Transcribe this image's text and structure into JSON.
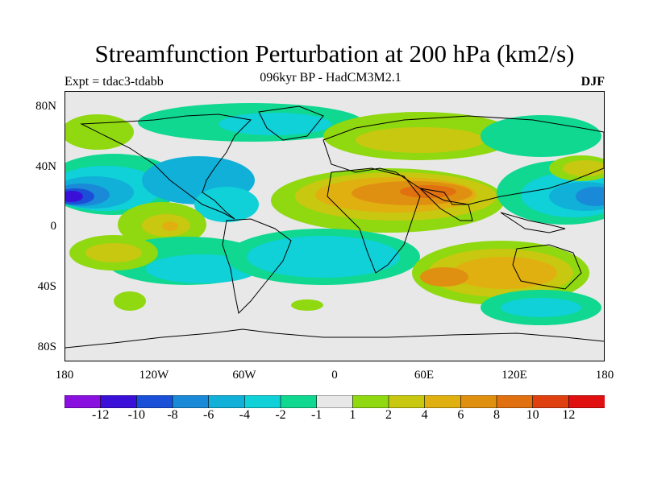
{
  "title": "Streamfunction Perturbation at 200 hPa (km2/s)",
  "subtitle": "096kyr BP - HadCM3M2.1",
  "experiment": "Expt = tdac3-tdabb",
  "season": "DJF",
  "latitude_labels": [
    "80N",
    "40N",
    "0",
    "40S",
    "80S"
  ],
  "longitude_labels": [
    "180",
    "120W",
    "60W",
    "0",
    "60E",
    "120E",
    "180"
  ],
  "colorbar": {
    "labels": [
      "-12",
      "-10",
      "-8",
      "-6",
      "-4",
      "-2",
      "-1",
      "1",
      "2",
      "4",
      "6",
      "8",
      "10",
      "12"
    ],
    "colors": [
      "#8a10e0",
      "#3a10d8",
      "#1a50d8",
      "#1a8ad8",
      "#10b0d8",
      "#10d0d8",
      "#10d890",
      "#e8e8e8",
      "#90d810",
      "#c8c810",
      "#e0b010",
      "#e09010",
      "#e07010",
      "#e04010",
      "#e01010"
    ]
  },
  "map_colors": {
    "background": "#e8e8e8",
    "coast": "#000000"
  }
}
